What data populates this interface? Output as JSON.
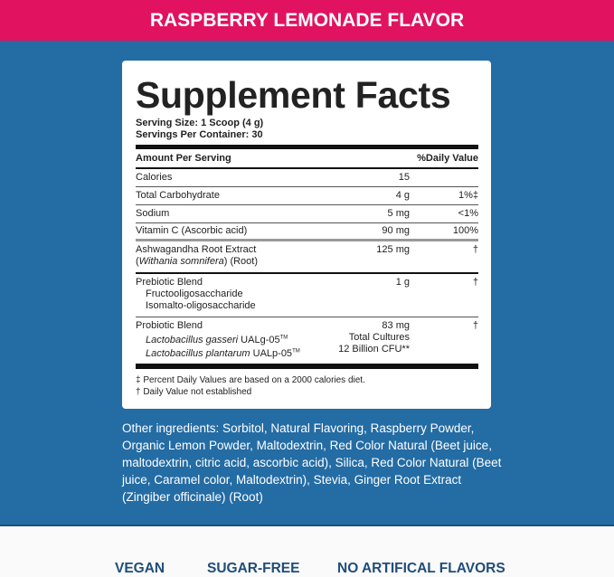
{
  "header": {
    "title": "RASPBERRY LEMONADE FLAVOR"
  },
  "colors": {
    "header": "#e1125f",
    "background": "#246ca4",
    "claims": "#1f4d7a"
  },
  "facts": {
    "title": "Supplement Facts",
    "serving_size": "Serving Size: 1 Scoop (4 g)",
    "servings_per_container": "Servings Per Container: 30",
    "col_amount": "Amount Per Serving",
    "col_dv": "%Daily Value",
    "rows": [
      {
        "name": "Calories",
        "amount": "15",
        "dv": ""
      },
      {
        "name": "Total Carbohydrate",
        "amount": "4 g",
        "dv": "1%‡"
      },
      {
        "name": "Sodium",
        "amount": "5 mg",
        "dv": "<1%"
      },
      {
        "name": "Vitamin C (Ascorbic acid)",
        "amount": "90 mg",
        "dv": "100%"
      }
    ],
    "ashwagandha": {
      "name": "Ashwagandha Root Extract",
      "paren_open": "(",
      "latin": "Withania somnifera",
      "suffix": ") (Root)",
      "amount": "125 mg",
      "dv": "†"
    },
    "prebiotic": {
      "name": "Prebiotic Blend",
      "amount": "1 g",
      "dv": "†",
      "items": [
        "Fructooligosaccharide",
        "Isomalto-oligosaccharide"
      ]
    },
    "probiotic": {
      "name": "Probiotic Blend",
      "amount": "83 mg",
      "dv": "†",
      "items": [
        {
          "latin": "Lactobacillus gasseri",
          "strain": " UALg-05",
          "tm": "TM",
          "amount": "Total Cultures"
        },
        {
          "latin": "Lactobacillus plantarum",
          "strain": " UALp-05",
          "tm": "TM",
          "amount": "12 Billion CFU**"
        }
      ]
    },
    "footnotes": [
      "‡ Percent Daily Values are based on a 2000 calories diet.",
      "† Daily Value not established"
    ]
  },
  "other_ingredients": "Other ingredients: Sorbitol, Natural Flavoring, Raspberry Powder, Organic Lemon Powder, Maltodextrin, Red Color Natural (Beet juice, maltodextrin, citric acid, ascorbic acid), Silica, Red Color Natural (Beet juice, Caramel color, Maltodextrin), Stevia, Ginger Root Extract (Zingiber officinale) (Root)",
  "claims": [
    "VEGAN",
    "SUGAR-FREE",
    "NO ARTIFICAL FLAVORS"
  ]
}
